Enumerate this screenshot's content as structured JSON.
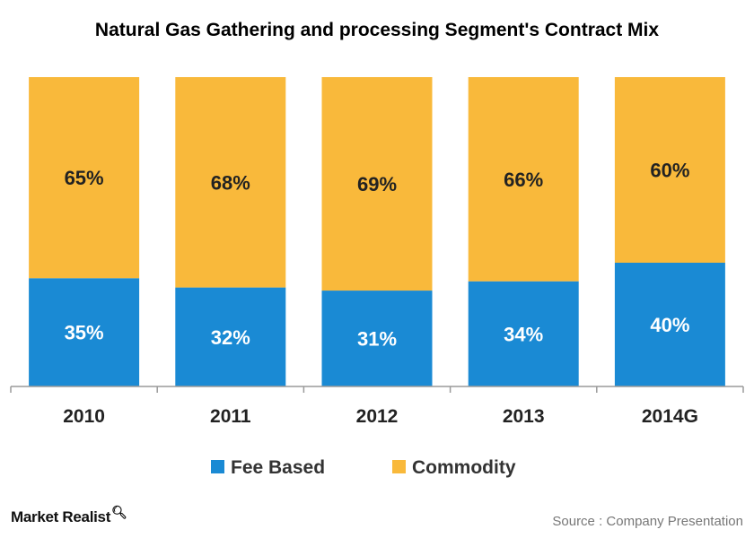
{
  "chart_data": {
    "type": "bar",
    "stacked": true,
    "percent_stacked": true,
    "title": "Natural Gas Gathering and processing Segment's Contract Mix",
    "categories": [
      "2010",
      "2011",
      "2012",
      "2013",
      "2014G"
    ],
    "series": [
      {
        "name": "Fee Based",
        "color": "#1a8ad4",
        "values": [
          35,
          32,
          31,
          34,
          40
        ],
        "labels": [
          "35%",
          "32%",
          "31%",
          "34%",
          "40%"
        ]
      },
      {
        "name": "Commodity",
        "color": "#f9b93b",
        "values": [
          65,
          68,
          69,
          66,
          60
        ],
        "labels": [
          "65%",
          "68%",
          "69%",
          "66%",
          "60%"
        ]
      }
    ],
    "ylim": [
      0,
      100
    ],
    "grid": false,
    "legend_position": "bottom"
  },
  "footer": {
    "brand": "Market Realist",
    "source": "Source : Company Presentation"
  }
}
